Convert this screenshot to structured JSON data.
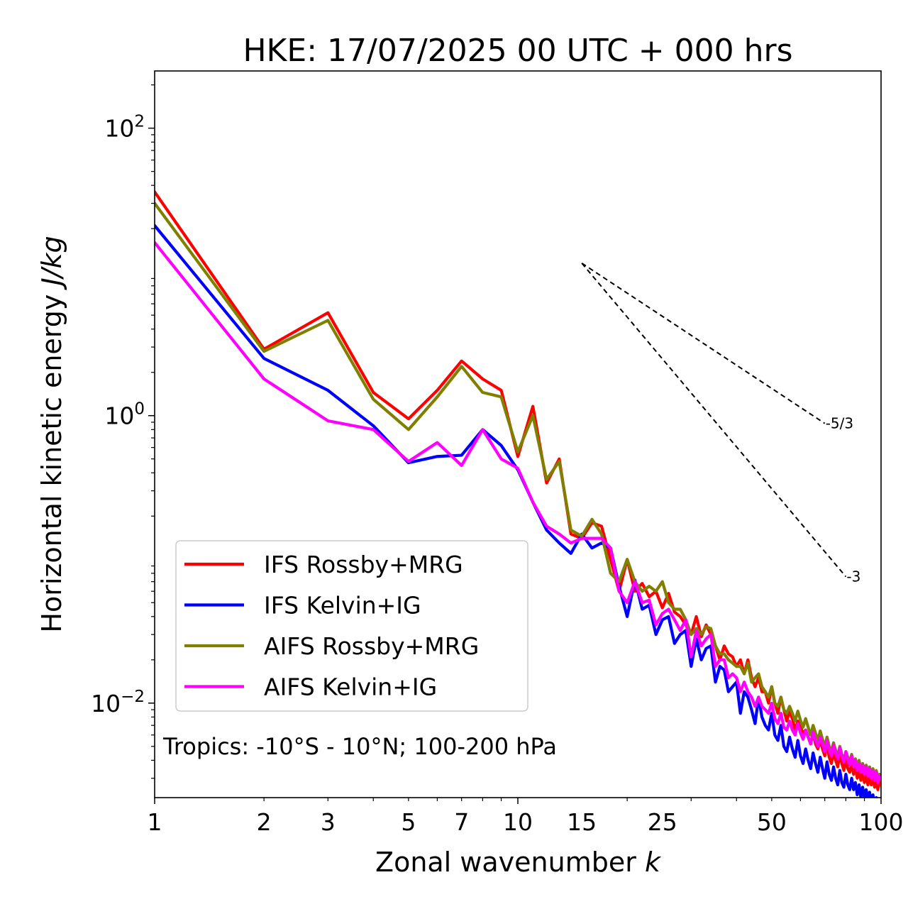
{
  "chart_data": {
    "type": "line",
    "title": "HKE: 17/07/2025 00 UTC + 000 hrs",
    "xlabel_text": "Zonal wavenumber ",
    "xlabel_var": "k",
    "ylabel_text": "Horizontal kinetic energy ",
    "ylabel_unit": "J/kg",
    "xscale": "log",
    "yscale": "log",
    "xlim": [
      1,
      100
    ],
    "ylim": [
      0.0022,
      250
    ],
    "x_ticks": [
      1,
      2,
      3,
      5,
      7,
      10,
      15,
      25,
      50,
      100
    ],
    "x_tick_labels": [
      "1",
      "2",
      "3",
      "5",
      "7",
      "10",
      "15",
      "25",
      "50",
      "100"
    ],
    "y_ticks": [
      {
        "value": 100,
        "base": "10",
        "exp": "2"
      },
      {
        "value": 1,
        "base": "10",
        "exp": "0"
      },
      {
        "value": 0.01,
        "base": "10",
        "exp": "−2"
      }
    ],
    "grid": false,
    "legend_position": "lower-left",
    "annotation": "Tropics: -10°S - 10°N; 100-200 hPa",
    "reference_slopes": [
      {
        "label": "-5/3",
        "slope": -1.6667,
        "x_start": 15,
        "x_end": 70,
        "y_start": 11.5
      },
      {
        "label": "-3",
        "slope": -3,
        "x_start": 15,
        "x_end": 80,
        "y_start": 11.5
      }
    ],
    "series": [
      {
        "name": "IFS Rossby+MRG",
        "color": "#ff0000",
        "values": [
          36,
          2.9,
          5.2,
          1.45,
          0.95,
          1.5,
          2.4,
          1.8,
          1.5,
          0.52,
          1.16,
          0.34,
          0.5,
          0.15,
          0.14,
          0.18,
          0.17,
          0.1,
          0.06,
          0.1,
          0.06,
          0.068,
          0.055,
          0.06,
          0.046,
          0.058,
          0.043,
          0.04,
          0.035,
          0.03,
          0.04,
          0.029,
          0.035,
          0.03,
          0.025,
          0.02,
          0.025,
          0.022,
          0.021,
          0.018,
          0.02,
          0.016,
          0.02,
          0.015,
          0.013,
          0.015,
          0.012,
          0.012,
          0.01,
          0.013,
          0.01,
          0.0085,
          0.011,
          0.009,
          0.0075,
          0.0088,
          0.0078,
          0.0065,
          0.0075,
          0.0068,
          0.0062,
          0.0065,
          0.0058,
          0.0052,
          0.0062,
          0.0052,
          0.0048,
          0.0055,
          0.0048,
          0.0043,
          0.0052,
          0.0042,
          0.0038,
          0.0046,
          0.004,
          0.0036,
          0.0044,
          0.0038,
          0.0034,
          0.004,
          0.0035,
          0.0033,
          0.0038,
          0.0032,
          0.0036,
          0.003,
          0.0034,
          0.0029,
          0.0033,
          0.0028,
          0.0032,
          0.0027,
          0.0031,
          0.0027,
          0.003,
          0.0026,
          0.0029,
          0.0025,
          0.0028,
          0.0029
        ]
      },
      {
        "name": "IFS Kelvin+IG",
        "color": "#0000ff",
        "values": [
          21,
          2.5,
          1.5,
          0.85,
          0.47,
          0.52,
          0.53,
          0.8,
          0.62,
          0.42,
          0.25,
          0.16,
          0.13,
          0.11,
          0.15,
          0.12,
          0.13,
          0.12,
          0.065,
          0.04,
          0.072,
          0.045,
          0.048,
          0.03,
          0.038,
          0.04,
          0.026,
          0.03,
          0.032,
          0.018,
          0.028,
          0.02,
          0.024,
          0.025,
          0.014,
          0.018,
          0.017,
          0.012,
          0.013,
          0.014,
          0.0085,
          0.012,
          0.011,
          0.009,
          0.0072,
          0.011,
          0.008,
          0.007,
          0.0065,
          0.0085,
          0.006,
          0.0055,
          0.007,
          0.005,
          0.0046,
          0.0058,
          0.0048,
          0.0042,
          0.0055,
          0.0043,
          0.0038,
          0.0048,
          0.004,
          0.0035,
          0.0045,
          0.0038,
          0.0033,
          0.0042,
          0.0035,
          0.003,
          0.0039,
          0.0032,
          0.0029,
          0.0036,
          0.003,
          0.0027,
          0.0034,
          0.0028,
          0.0026,
          0.0032,
          0.0027,
          0.0025,
          0.003,
          0.0025,
          0.0028,
          0.0023,
          0.0027,
          0.0022,
          0.0026,
          0.0022,
          0.0025,
          0.0021,
          0.0024,
          0.002,
          0.0023,
          0.0019,
          0.0022,
          0.0019,
          0.0021,
          0.0019
        ]
      },
      {
        "name": "AIFS Rossby+MRG",
        "color": "#808000",
        "values": [
          30,
          2.8,
          4.6,
          1.3,
          0.8,
          1.35,
          2.2,
          1.45,
          1.35,
          0.56,
          1.0,
          0.36,
          0.48,
          0.16,
          0.145,
          0.19,
          0.15,
          0.08,
          0.07,
          0.1,
          0.07,
          0.06,
          0.065,
          0.06,
          0.07,
          0.05,
          0.045,
          0.045,
          0.038,
          0.03,
          0.033,
          0.03,
          0.034,
          0.033,
          0.025,
          0.022,
          0.022,
          0.02,
          0.019,
          0.018,
          0.018,
          0.016,
          0.019,
          0.014,
          0.015,
          0.016,
          0.013,
          0.012,
          0.011,
          0.013,
          0.01,
          0.0095,
          0.011,
          0.009,
          0.0085,
          0.0095,
          0.0085,
          0.0075,
          0.0088,
          0.0076,
          0.0068,
          0.0078,
          0.0068,
          0.006,
          0.007,
          0.0062,
          0.0055,
          0.0064,
          0.0056,
          0.005,
          0.0058,
          0.005,
          0.0046,
          0.0053,
          0.0047,
          0.0043,
          0.005,
          0.0044,
          0.004,
          0.0046,
          0.0042,
          0.0039,
          0.0044,
          0.0038,
          0.0041,
          0.0036,
          0.004,
          0.0035,
          0.0038,
          0.0034,
          0.0037,
          0.0033,
          0.0036,
          0.0032,
          0.0035,
          0.0031,
          0.0034,
          0.003,
          0.0032,
          0.003
        ]
      },
      {
        "name": "AIFS Kelvin+IG",
        "color": "#ff00ff",
        "values": [
          16,
          1.8,
          0.92,
          0.8,
          0.48,
          0.65,
          0.45,
          0.8,
          0.5,
          0.43,
          0.25,
          0.17,
          0.15,
          0.13,
          0.14,
          0.14,
          0.14,
          0.12,
          0.06,
          0.05,
          0.07,
          0.05,
          0.052,
          0.035,
          0.042,
          0.045,
          0.038,
          0.032,
          0.038,
          0.021,
          0.032,
          0.025,
          0.028,
          0.03,
          0.018,
          0.02,
          0.02,
          0.015,
          0.016,
          0.015,
          0.012,
          0.014,
          0.012,
          0.011,
          0.0095,
          0.011,
          0.0095,
          0.009,
          0.0085,
          0.01,
          0.0078,
          0.0072,
          0.0085,
          0.0068,
          0.0065,
          0.0075,
          0.0065,
          0.006,
          0.0072,
          0.0062,
          0.0056,
          0.0065,
          0.0058,
          0.0052,
          0.0063,
          0.0055,
          0.005,
          0.0058,
          0.0052,
          0.0046,
          0.0055,
          0.0047,
          0.0043,
          0.0051,
          0.0045,
          0.0041,
          0.0049,
          0.0043,
          0.0039,
          0.0046,
          0.004,
          0.0037,
          0.0043,
          0.0036,
          0.004,
          0.0034,
          0.0038,
          0.0033,
          0.0037,
          0.0032,
          0.0036,
          0.0031,
          0.0035,
          0.003,
          0.0034,
          0.0029,
          0.0033,
          0.0028,
          0.0031,
          0.003
        ]
      }
    ]
  }
}
